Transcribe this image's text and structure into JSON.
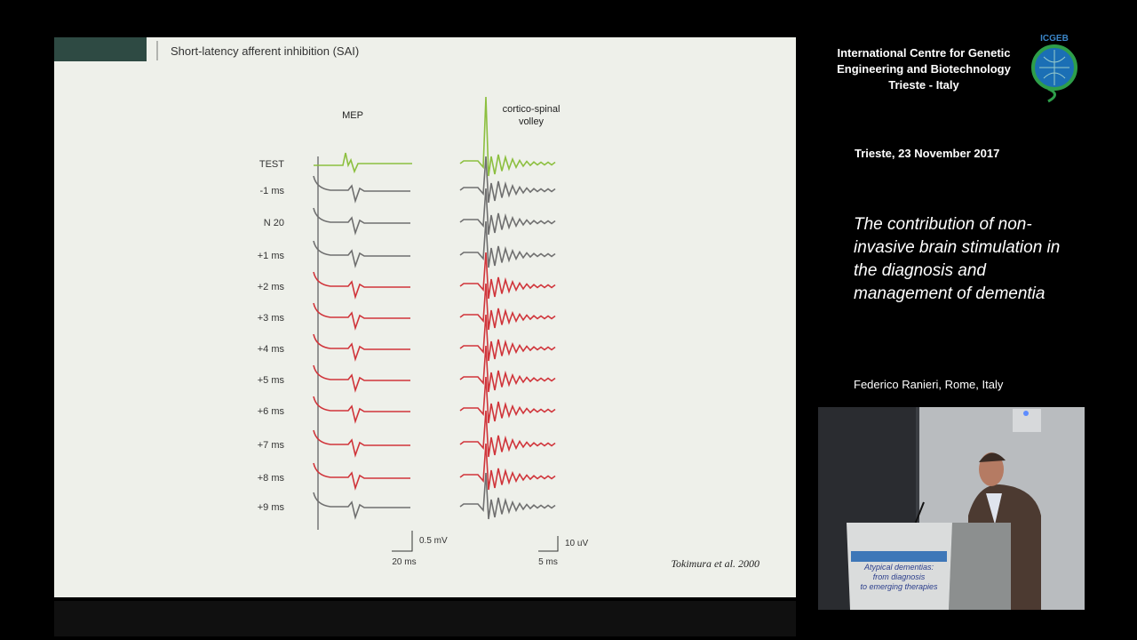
{
  "slide": {
    "title": "Short-latency afferent inhibition (SAI)",
    "mep_label": "MEP",
    "volley_label": [
      "cortico-spinal",
      "volley"
    ],
    "traces": [
      {
        "label": "TEST",
        "color": "#8cbf3f"
      },
      {
        "label": "-1 ms",
        "color": "#6f6f6f"
      },
      {
        "label": "N 20",
        "color": "#6f6f6f"
      },
      {
        "label": "+1 ms",
        "color": "#6f6f6f"
      },
      {
        "label": "+2 ms",
        "color": "#d0343a"
      },
      {
        "label": "+3 ms",
        "color": "#d0343a"
      },
      {
        "label": "+4 ms",
        "color": "#d0343a"
      },
      {
        "label": "+5 ms",
        "color": "#d0343a"
      },
      {
        "label": "+6 ms",
        "color": "#d0343a"
      },
      {
        "label": "+7 ms",
        "color": "#d0343a"
      },
      {
        "label": "+8 ms",
        "color": "#d0343a"
      },
      {
        "label": "+9 ms",
        "color": "#6f6f6f"
      }
    ],
    "scale_mep": {
      "amplitude": "0.5 mV",
      "time": "20 ms"
    },
    "scale_volley": {
      "amplitude": "10 uV",
      "time": "5 ms"
    },
    "citation": "Tokimura et al. 2000"
  },
  "sidebar": {
    "institution": [
      "International Centre for Genetic",
      "Engineering and Biotechnology",
      "Trieste - Italy"
    ],
    "logo": "ICGEB",
    "date": "Trieste, 23 November 2017",
    "talk_title": [
      "The contribution of non-",
      "invasive brain stimulation in",
      "the diagnosis and",
      "management of dementia"
    ],
    "speaker": "Federico Ranieri, Rome, Italy"
  },
  "video": {
    "banner": [
      "Atypical dementias:",
      "from diagnosis",
      "to emerging therapies"
    ]
  }
}
